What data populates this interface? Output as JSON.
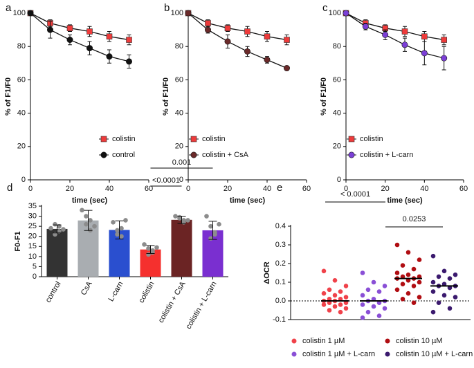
{
  "chart_data": [
    {
      "type": "line",
      "panel": "a",
      "xlabel": "time (sec)",
      "ylabel": "% of F1/F0",
      "x": [
        0,
        10,
        20,
        30,
        40,
        50
      ],
      "xlim": [
        0,
        60
      ],
      "xticks": [
        0,
        20,
        40,
        60
      ],
      "ylim": [
        0,
        100
      ],
      "yticks": [
        0,
        20,
        40,
        60,
        80,
        100
      ],
      "legend": "lower right",
      "series": [
        {
          "name": "colistin",
          "color": "#ee3b3b",
          "marker": "square",
          "values": [
            100,
            94,
            91,
            89,
            86,
            84
          ],
          "errors": [
            0,
            2,
            2,
            3,
            3,
            3
          ]
        },
        {
          "name": "control",
          "color": "#111111",
          "marker": "circle",
          "values": [
            100,
            90,
            84,
            79,
            74,
            71
          ],
          "errors": [
            0,
            5,
            3,
            4,
            4,
            4
          ]
        }
      ]
    },
    {
      "type": "line",
      "panel": "b",
      "xlabel": "time (sec)",
      "ylabel": "% of F1/F0",
      "x": [
        0,
        10,
        20,
        30,
        40,
        50
      ],
      "xlim": [
        0,
        60
      ],
      "xticks": [
        0,
        20,
        40,
        60
      ],
      "ylim": [
        0,
        100
      ],
      "yticks": [
        0,
        20,
        40,
        60,
        80,
        100
      ],
      "legend": "lower left",
      "series": [
        {
          "name": "colistin",
          "color": "#ee3b3b",
          "marker": "square",
          "values": [
            100,
            94,
            91,
            89,
            86,
            84
          ],
          "errors": [
            0,
            2,
            2,
            3,
            3,
            3
          ]
        },
        {
          "name": "colistin + CsA",
          "color": "#6b2a2a",
          "marker": "circle",
          "values": [
            100,
            90,
            83,
            77,
            72,
            67
          ],
          "errors": [
            0,
            2,
            4,
            3,
            2,
            1
          ]
        }
      ]
    },
    {
      "type": "line",
      "panel": "c",
      "xlabel": "time (sec)",
      "ylabel": "% of F1/F0",
      "x": [
        0,
        10,
        20,
        30,
        40,
        50
      ],
      "xlim": [
        0,
        60
      ],
      "xticks": [
        0,
        20,
        40,
        60
      ],
      "ylim": [
        0,
        100
      ],
      "yticks": [
        0,
        20,
        40,
        60,
        80,
        100
      ],
      "legend": "lower left",
      "series": [
        {
          "name": "colistin",
          "color": "#ee3b3b",
          "marker": "square",
          "values": [
            100,
            94,
            91,
            89,
            86,
            84
          ],
          "errors": [
            0,
            2,
            2,
            3,
            3,
            3
          ]
        },
        {
          "name": "colistin + L-carn",
          "color": "#7b3fd6",
          "marker": "circle",
          "values": [
            100,
            92,
            87,
            81,
            76,
            73
          ],
          "errors": [
            0,
            2,
            3,
            4,
            7,
            7
          ]
        }
      ]
    },
    {
      "type": "bar",
      "panel": "d",
      "ylabel": "F0-F1",
      "categories": [
        "control",
        "CsA",
        "L-carn",
        "colistin",
        "colistin + CsA",
        "colistin + L-carn"
      ],
      "values": [
        23.7,
        27.9,
        23.2,
        13.5,
        28.2,
        23.0
      ],
      "errors": [
        2,
        5,
        4.5,
        2,
        1.8,
        4.5
      ],
      "colors": [
        "#333333",
        "#a9adb1",
        "#2a4fcf",
        "#f5302e",
        "#6b2424",
        "#7a2fd0"
      ],
      "points": [
        [
          24,
          26,
          22.5,
          21,
          25,
          23.5
        ],
        [
          33,
          30,
          28,
          26,
          23,
          25
        ],
        [
          27,
          23,
          20,
          21,
          24,
          28
        ],
        [
          16,
          14,
          12,
          11,
          13,
          14.5
        ],
        [
          30,
          29,
          28,
          29.5,
          27,
          28
        ],
        [
          30,
          25,
          21,
          19,
          22,
          26
        ]
      ],
      "ylim": [
        0,
        35
      ],
      "yticks": [
        0,
        5,
        10,
        15,
        20,
        25,
        30,
        35
      ],
      "annotations": [
        "<0.0001",
        "0.001"
      ]
    },
    {
      "type": "strip",
      "panel": "e",
      "ylabel": "ΔOCR",
      "ylim": [
        -0.1,
        0.4
      ],
      "yticks": [
        -0.1,
        {
          "value": 0,
          "label": "0.0"
        },
        0.1,
        0.2,
        0.3,
        0.4
      ],
      "zero_line": true,
      "annotations": [
        "< 0.0001",
        "0.0253"
      ],
      "legend": "bottom",
      "series": [
        {
          "name": "colistin 1 µM",
          "color": "#f0424a",
          "median": 0,
          "values": [
            0.16,
            0.11,
            0.08,
            0.06,
            0.05,
            0.04,
            0.03,
            0.02,
            0.01,
            0.01,
            0,
            0,
            -0.01,
            -0.01,
            -0.02,
            -0.02,
            -0.03,
            -0.04,
            -0.05,
            -0.06
          ]
        },
        {
          "name": "colistin 1 µM + L-carn",
          "color": "#8a4fd6",
          "median": 0,
          "values": [
            0.15,
            0.1,
            0.08,
            0.06,
            0.05,
            0.03,
            0.01,
            0,
            0,
            -0.01,
            -0.02,
            -0.03,
            -0.04,
            -0.06,
            -0.08,
            -0.09
          ]
        },
        {
          "name": "colistin 10 µM",
          "color": "#b00d12",
          "median": 0.12,
          "values": [
            0.3,
            0.26,
            0.22,
            0.19,
            0.17,
            0.15,
            0.14,
            0.13,
            0.13,
            0.12,
            0.12,
            0.11,
            0.1,
            0.09,
            0.08,
            0.06,
            0.04,
            0.02,
            0.01,
            -0.01
          ]
        },
        {
          "name": "colistin 10 µM + L-carn",
          "color": "#3b1a6e",
          "median": 0.08,
          "values": [
            0.24,
            0.16,
            0.14,
            0.13,
            0.12,
            0.1,
            0.09,
            0.08,
            0.08,
            0.07,
            0.05,
            0.03,
            0.02,
            -0.01,
            -0.04,
            -0.06
          ]
        }
      ]
    }
  ]
}
